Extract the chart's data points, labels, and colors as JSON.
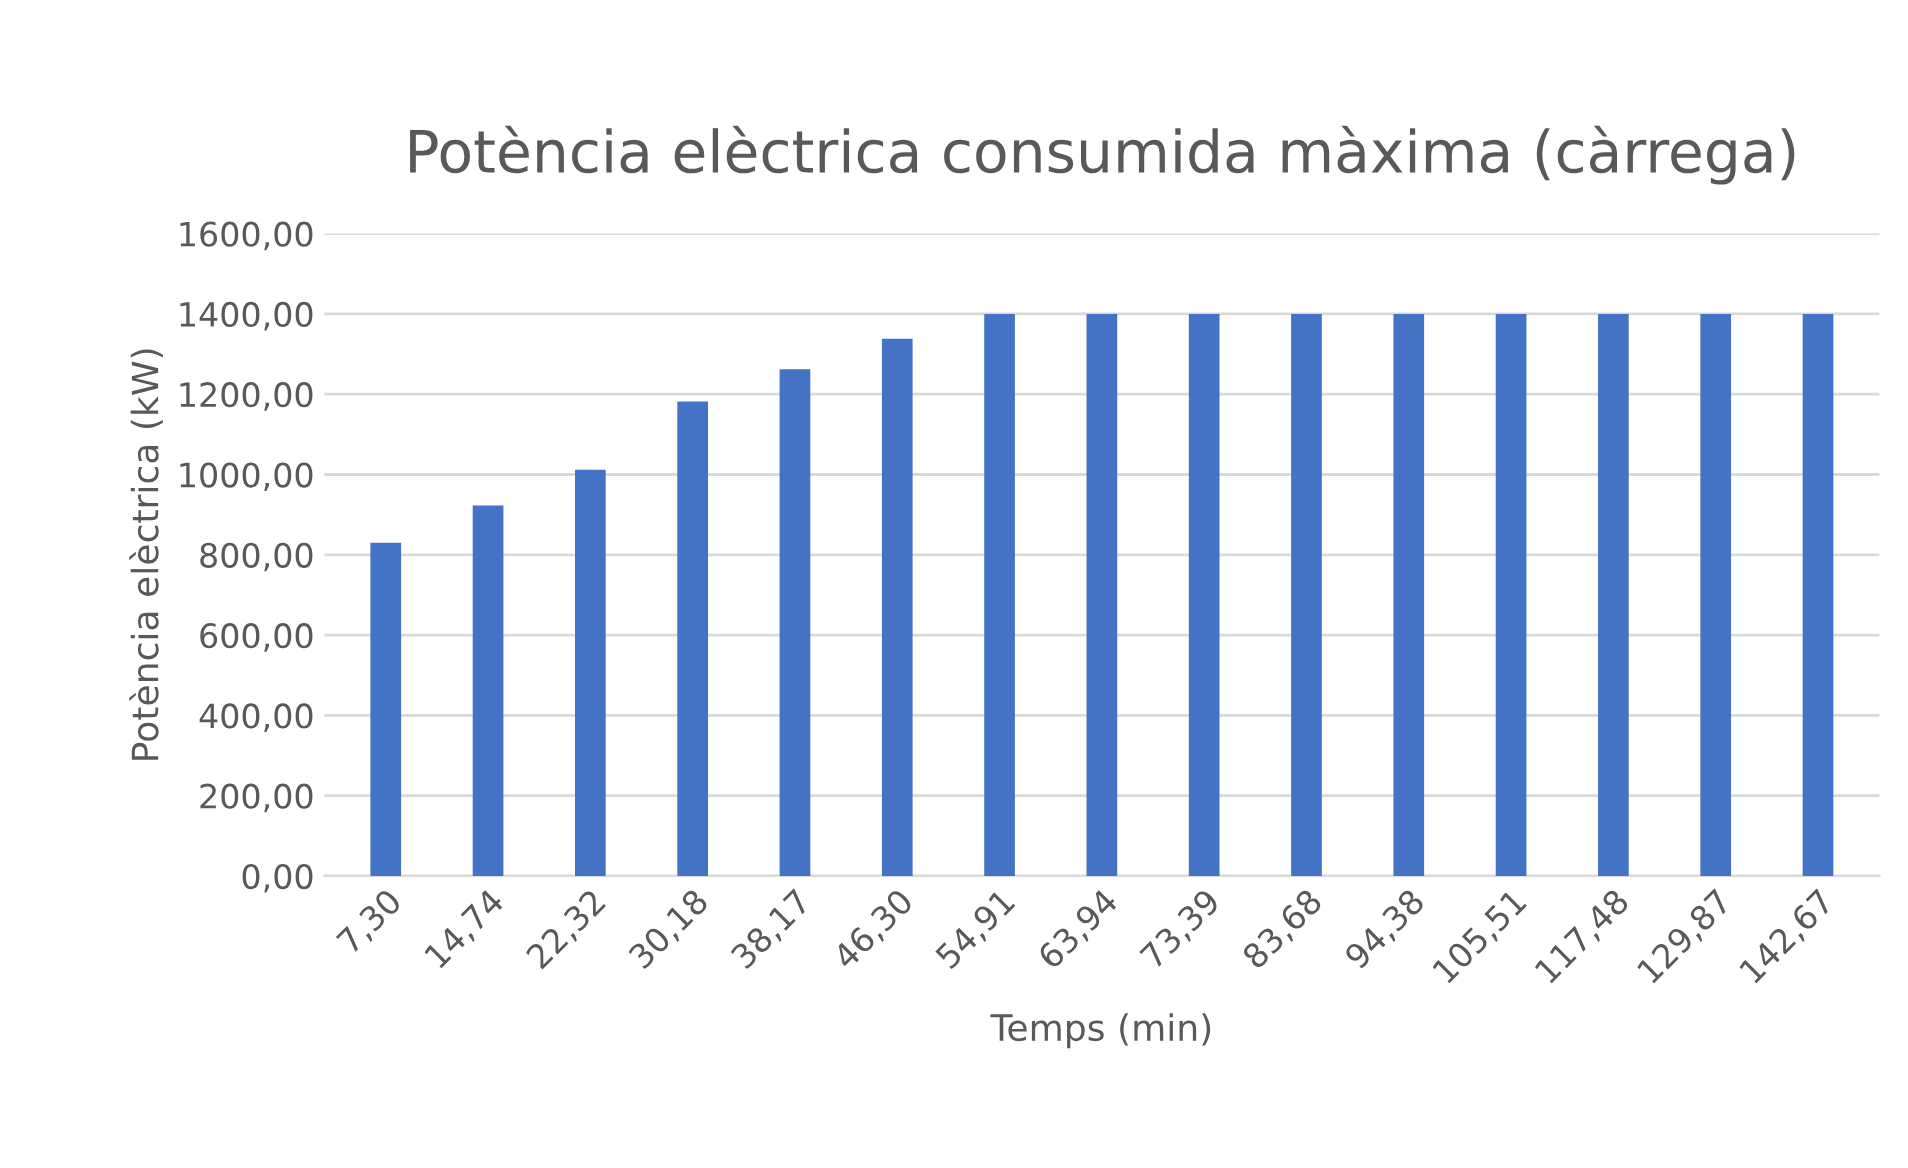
{
  "chart_data": {
    "type": "bar",
    "title": "Potència elèctrica consumida màxima (càrrega)",
    "xlabel": "Temps (min)",
    "ylabel": "Potència elèctrica (kW)",
    "categories": [
      "7,30",
      "14,74",
      "22,32",
      "30,18",
      "38,17",
      "46,30",
      "54,91",
      "63,94",
      "73,39",
      "83,68",
      "94,38",
      "105,51",
      "117,48",
      "129,87",
      "142,67"
    ],
    "values": [
      830,
      923,
      1012,
      1182,
      1262,
      1338,
      1400,
      1400,
      1400,
      1400,
      1400,
      1400,
      1400,
      1400,
      1400
    ],
    "color": "#4472c4",
    "ylim": [
      0,
      1600
    ],
    "yticks": [
      {
        "value": 0,
        "label": "0,00"
      },
      {
        "value": 200,
        "label": "200,00"
      },
      {
        "value": 400,
        "label": "400,00"
      },
      {
        "value": 600,
        "label": "600,00"
      },
      {
        "value": 800,
        "label": "800,00"
      },
      {
        "value": 1000,
        "label": "1000,00"
      },
      {
        "value": 1200,
        "label": "1200,00"
      },
      {
        "value": 1400,
        "label": "1400,00"
      },
      {
        "value": 1600,
        "label": "1600,00"
      }
    ],
    "grid": "y",
    "legend": false
  }
}
